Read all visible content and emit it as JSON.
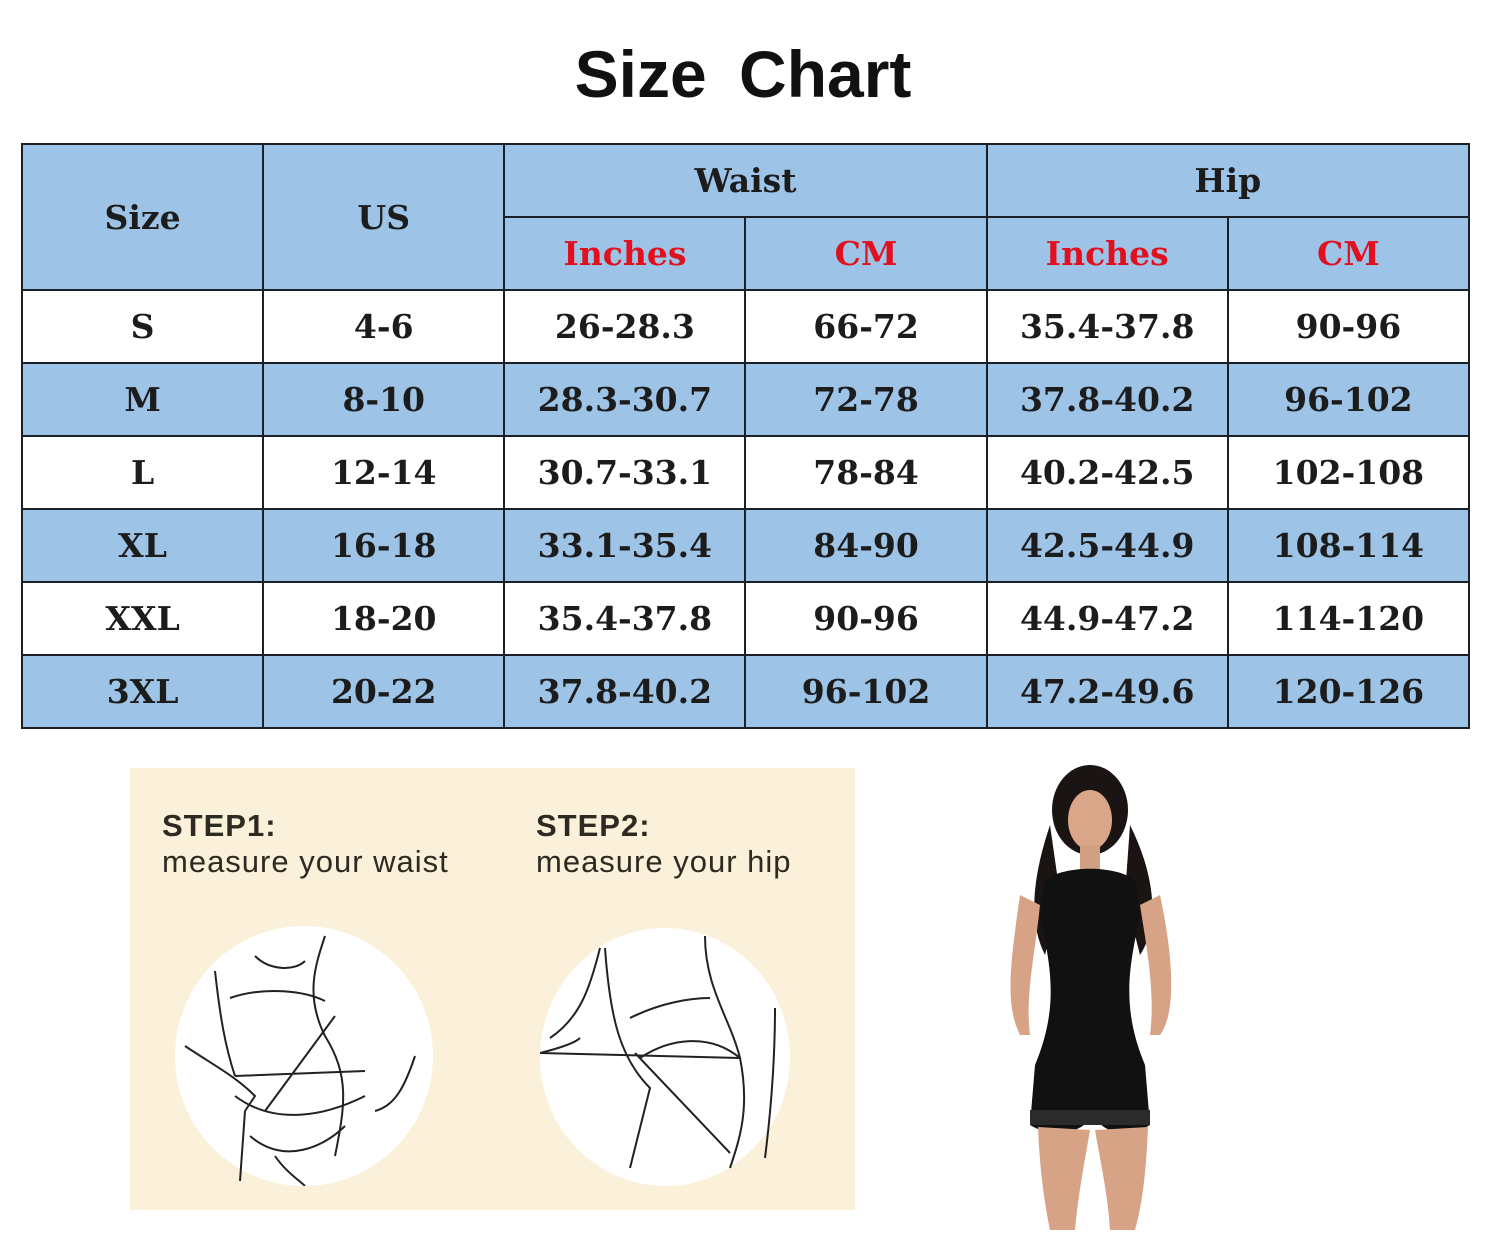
{
  "title": "Size Chart",
  "table": {
    "headers": {
      "size": "Size",
      "us": "US",
      "waist": "Waist",
      "hip": "Hip",
      "inches": "Inches",
      "cm": "CM"
    },
    "rows": [
      [
        "S",
        "4-6",
        "26-28.3",
        "66-72",
        "35.4-37.8",
        "90-96"
      ],
      [
        "M",
        "8-10",
        "28.3-30.7",
        "72-78",
        "37.8-40.2",
        "96-102"
      ],
      [
        "L",
        "12-14",
        "30.7-33.1",
        "78-84",
        "40.2-42.5",
        "102-108"
      ],
      [
        "XL",
        "16-18",
        "33.1-35.4",
        "84-90",
        "42.5-44.9",
        "108-114"
      ],
      [
        "XXL",
        "18-20",
        "35.4-37.8",
        "90-96",
        "44.9-47.2",
        "114-120"
      ],
      [
        "3XL",
        "20-22",
        "37.8-40.2",
        "96-102",
        "47.2-49.6",
        "120-126"
      ]
    ]
  },
  "steps": [
    {
      "label": "STEP1:",
      "text": "measure your waist"
    },
    {
      "label": "STEP2:",
      "text": "measure your hip"
    }
  ],
  "colors": {
    "header_blue": "#9dc3e6",
    "unit_red": "#e0101f",
    "panel_beige": "#fbf0d9"
  }
}
